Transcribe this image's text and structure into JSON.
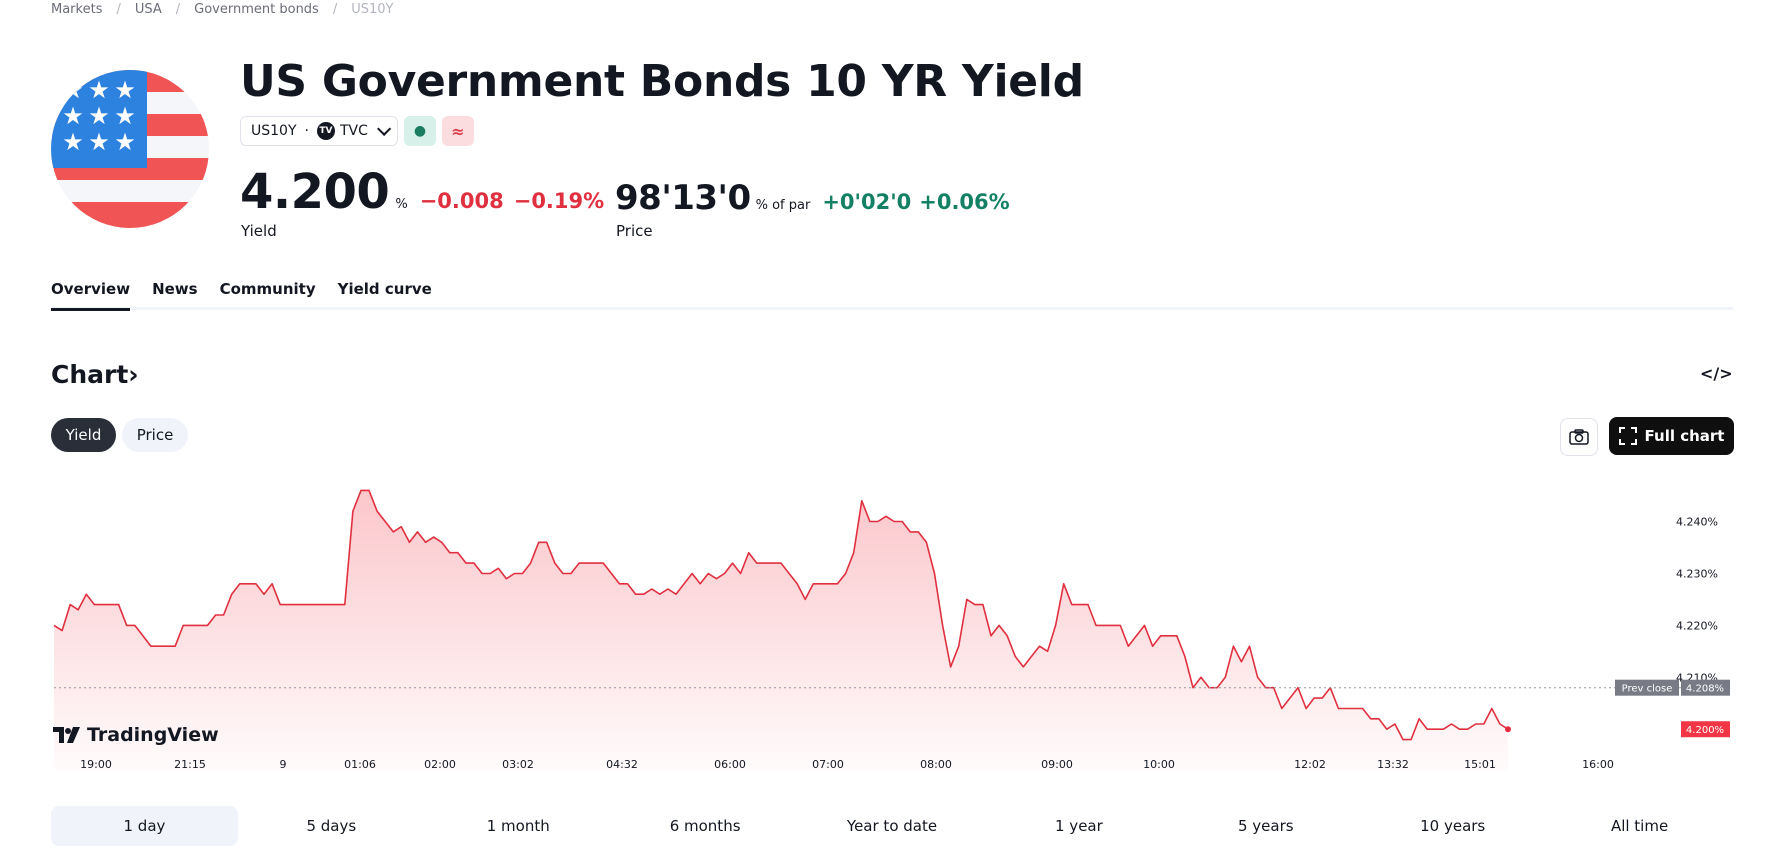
{
  "breadcrumb": {
    "items": [
      "Markets",
      "USA",
      "Government bonds"
    ],
    "current": "US10Y"
  },
  "header": {
    "title": "US Government Bonds 10 YR Yield",
    "symbol": "US10Y",
    "exchange": "TVC",
    "tv_badge": "TV",
    "status_green": "●",
    "status_red": "≈"
  },
  "quote": {
    "yield": {
      "value": "4.200",
      "unit": "%",
      "change": "−0.008",
      "change_pct": "−0.19%",
      "label": "Yield"
    },
    "price": {
      "value": "98'13'0",
      "unit": "% of par",
      "change": "+0'02'0",
      "change_pct": "+0.06%",
      "label": "Price"
    }
  },
  "tabs": [
    "Overview",
    "News",
    "Community",
    "Yield curve"
  ],
  "chart_section": {
    "title": "Chart",
    "chevron": "›",
    "embed_label": "</>",
    "toggle": {
      "yield": "Yield",
      "price": "Price"
    },
    "full_chart": "Full chart",
    "logo_text": "TradingView"
  },
  "ranges": [
    "1 day",
    "5 days",
    "1 month",
    "6 months",
    "Year to date",
    "1 year",
    "5 years",
    "10 years",
    "All time"
  ],
  "colors": {
    "line": "#e0303f",
    "positive": "#148064",
    "negative": "#e0303f"
  },
  "chart_data": {
    "type": "area",
    "x_ticks": [
      "19:00",
      "21:15",
      "9",
      "01:06",
      "02:00",
      "03:02",
      "04:32",
      "06:00",
      "07:00",
      "08:00",
      "09:00",
      "10:00",
      "12:02",
      "13:32",
      "15:01",
      "16:00"
    ],
    "y_ticks": [
      "4.240%",
      "4.230%",
      "4.220%",
      "4.210%"
    ],
    "y_tick_values": [
      4.24,
      4.23,
      4.22,
      4.21
    ],
    "ylim": [
      4.196,
      4.248
    ],
    "prev_close": {
      "label": "Prev close",
      "value": 4.208,
      "text": "4.208%"
    },
    "last": {
      "value": 4.2,
      "text": "4.200%"
    },
    "values": [
      4.22,
      4.219,
      4.224,
      4.223,
      4.226,
      4.224,
      4.224,
      4.224,
      4.224,
      4.22,
      4.22,
      4.218,
      4.216,
      4.216,
      4.216,
      4.216,
      4.22,
      4.22,
      4.22,
      4.22,
      4.222,
      4.222,
      4.226,
      4.228,
      4.228,
      4.228,
      4.226,
      4.228,
      4.224,
      4.224,
      4.224,
      4.224,
      4.224,
      4.224,
      4.224,
      4.224,
      4.224,
      4.242,
      4.246,
      4.246,
      4.242,
      4.24,
      4.238,
      4.239,
      4.236,
      4.238,
      4.236,
      4.237,
      4.236,
      4.234,
      4.234,
      4.232,
      4.232,
      4.23,
      4.23,
      4.231,
      4.229,
      4.23,
      4.23,
      4.232,
      4.236,
      4.236,
      4.232,
      4.23,
      4.23,
      4.232,
      4.232,
      4.232,
      4.232,
      4.23,
      4.228,
      4.228,
      4.226,
      4.226,
      4.227,
      4.226,
      4.227,
      4.226,
      4.228,
      4.23,
      4.228,
      4.23,
      4.229,
      4.23,
      4.232,
      4.23,
      4.234,
      4.232,
      4.232,
      4.232,
      4.232,
      4.23,
      4.228,
      4.225,
      4.228,
      4.228,
      4.228,
      4.228,
      4.23,
      4.234,
      4.244,
      4.24,
      4.24,
      4.241,
      4.24,
      4.24,
      4.238,
      4.238,
      4.236,
      4.23,
      4.22,
      4.212,
      4.216,
      4.225,
      4.224,
      4.224,
      4.218,
      4.22,
      4.218,
      4.214,
      4.212,
      4.214,
      4.216,
      4.215,
      4.22,
      4.228,
      4.224,
      4.224,
      4.224,
      4.22,
      4.22,
      4.22,
      4.22,
      4.216,
      4.218,
      4.22,
      4.216,
      4.218,
      4.218,
      4.218,
      4.214,
      4.208,
      4.21,
      4.208,
      4.208,
      4.21,
      4.216,
      4.213,
      4.216,
      4.21,
      4.208,
      4.208,
      4.204,
      4.206,
      4.208,
      4.204,
      4.206,
      4.206,
      4.208,
      4.204,
      4.204,
      4.204,
      4.204,
      4.202,
      4.202,
      4.2,
      4.201,
      4.198,
      4.198,
      4.202,
      4.2,
      4.2,
      4.2,
      4.201,
      4.2,
      4.2,
      4.201,
      4.201,
      4.204,
      4.201,
      4.2
    ]
  }
}
